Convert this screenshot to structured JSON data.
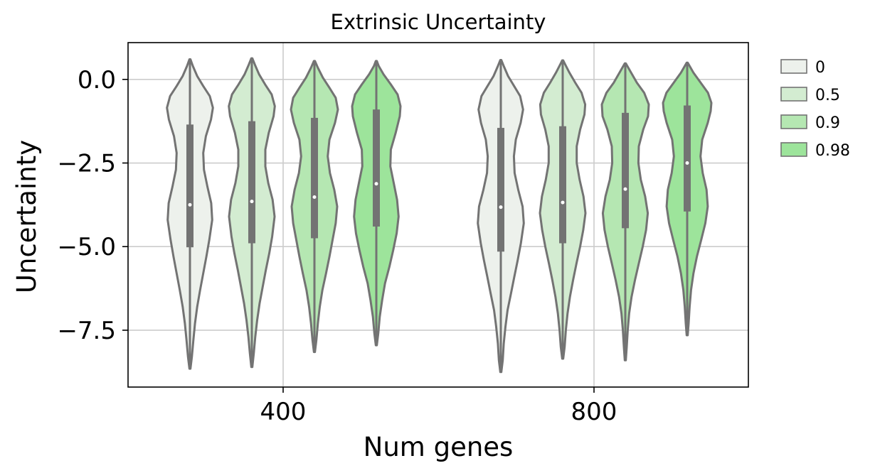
{
  "chart_data": {
    "type": "violin",
    "title": "Extrinsic Uncertainty",
    "xlabel": "Num genes",
    "ylabel": "Uncertainty",
    "categories": [
      "400",
      "800"
    ],
    "ylim": [
      -9.2,
      1.1
    ],
    "yticks": [
      0.0,
      -2.5,
      -5.0,
      -7.5
    ],
    "ytick_labels": [
      "0.0",
      "−2.5",
      "−5.0",
      "−7.5"
    ],
    "grid": true,
    "legend": {
      "placement": "outside-right",
      "title": ""
    },
    "series": [
      {
        "name": "0",
        "color": "#edf1ec",
        "groups": [
          {
            "category": "400",
            "min": -8.65,
            "max": 0.6,
            "q1": -5.02,
            "median": -3.75,
            "q3": -1.35,
            "profile": [
              [
                -8.65,
                0.02
              ],
              [
                -8.3,
                0.08
              ],
              [
                -7.8,
                0.14
              ],
              [
                -7.3,
                0.21
              ],
              [
                -6.8,
                0.3
              ],
              [
                -6.3,
                0.42
              ],
              [
                -5.8,
                0.55
              ],
              [
                -5.3,
                0.68
              ],
              [
                -4.8,
                0.8
              ],
              [
                -4.2,
                0.92
              ],
              [
                -3.7,
                0.88
              ],
              [
                -3.2,
                0.72
              ],
              [
                -2.7,
                0.58
              ],
              [
                -2.2,
                0.55
              ],
              [
                -1.7,
                0.66
              ],
              [
                -1.2,
                0.87
              ],
              [
                -0.85,
                0.95
              ],
              [
                -0.5,
                0.82
              ],
              [
                -0.2,
                0.55
              ],
              [
                0.1,
                0.3
              ],
              [
                0.4,
                0.12
              ],
              [
                0.6,
                0.02
              ]
            ]
          },
          {
            "category": "800",
            "min": -8.75,
            "max": 0.58,
            "q1": -5.15,
            "median": -3.82,
            "q3": -1.45,
            "profile": [
              [
                -8.75,
                0.02
              ],
              [
                -8.4,
                0.08
              ],
              [
                -7.9,
                0.12
              ],
              [
                -7.4,
                0.19
              ],
              [
                -6.9,
                0.28
              ],
              [
                -6.4,
                0.42
              ],
              [
                -5.9,
                0.56
              ],
              [
                -5.4,
                0.7
              ],
              [
                -4.9,
                0.83
              ],
              [
                -4.3,
                0.95
              ],
              [
                -3.8,
                0.9
              ],
              [
                -3.3,
                0.72
              ],
              [
                -2.8,
                0.57
              ],
              [
                -2.3,
                0.54
              ],
              [
                -1.8,
                0.62
              ],
              [
                -1.3,
                0.82
              ],
              [
                -0.9,
                0.92
              ],
              [
                -0.5,
                0.8
              ],
              [
                -0.2,
                0.55
              ],
              [
                0.1,
                0.3
              ],
              [
                0.4,
                0.12
              ],
              [
                0.58,
                0.02
              ]
            ]
          }
        ]
      },
      {
        "name": "0.5",
        "color": "#d3ecd1",
        "groups": [
          {
            "category": "400",
            "min": -8.6,
            "max": 0.63,
            "q1": -4.9,
            "median": -3.65,
            "q3": -1.25,
            "profile": [
              [
                -8.6,
                0.02
              ],
              [
                -8.2,
                0.08
              ],
              [
                -7.7,
                0.14
              ],
              [
                -7.2,
                0.22
              ],
              [
                -6.7,
                0.32
              ],
              [
                -6.2,
                0.45
              ],
              [
                -5.7,
                0.58
              ],
              [
                -5.2,
                0.72
              ],
              [
                -4.7,
                0.84
              ],
              [
                -4.1,
                0.94
              ],
              [
                -3.6,
                0.86
              ],
              [
                -3.1,
                0.68
              ],
              [
                -2.6,
                0.56
              ],
              [
                -2.1,
                0.56
              ],
              [
                -1.6,
                0.7
              ],
              [
                -1.1,
                0.9
              ],
              [
                -0.8,
                0.95
              ],
              [
                -0.45,
                0.82
              ],
              [
                -0.15,
                0.55
              ],
              [
                0.15,
                0.3
              ],
              [
                0.45,
                0.12
              ],
              [
                0.63,
                0.02
              ]
            ]
          },
          {
            "category": "800",
            "min": -8.35,
            "max": 0.57,
            "q1": -4.9,
            "median": -3.68,
            "q3": -1.4,
            "profile": [
              [
                -8.35,
                0.02
              ],
              [
                -8.0,
                0.08
              ],
              [
                -7.5,
                0.13
              ],
              [
                -7.0,
                0.2
              ],
              [
                -6.5,
                0.3
              ],
              [
                -6.0,
                0.43
              ],
              [
                -5.5,
                0.57
              ],
              [
                -5.0,
                0.72
              ],
              [
                -4.5,
                0.85
              ],
              [
                -4.0,
                0.94
              ],
              [
                -3.5,
                0.86
              ],
              [
                -3.0,
                0.7
              ],
              [
                -2.5,
                0.58
              ],
              [
                -2.0,
                0.58
              ],
              [
                -1.5,
                0.72
              ],
              [
                -1.05,
                0.9
              ],
              [
                -0.75,
                0.93
              ],
              [
                -0.4,
                0.78
              ],
              [
                -0.1,
                0.52
              ],
              [
                0.2,
                0.28
              ],
              [
                0.45,
                0.1
              ],
              [
                0.57,
                0.02
              ]
            ]
          }
        ]
      },
      {
        "name": "0.9",
        "color": "#b5e7b2",
        "groups": [
          {
            "category": "400",
            "min": -8.15,
            "max": 0.55,
            "q1": -4.75,
            "median": -3.52,
            "q3": -1.15,
            "profile": [
              [
                -8.15,
                0.02
              ],
              [
                -7.8,
                0.08
              ],
              [
                -7.3,
                0.14
              ],
              [
                -6.8,
                0.22
              ],
              [
                -6.3,
                0.33
              ],
              [
                -5.8,
                0.48
              ],
              [
                -5.3,
                0.62
              ],
              [
                -4.8,
                0.75
              ],
              [
                -4.3,
                0.88
              ],
              [
                -3.8,
                0.94
              ],
              [
                -3.3,
                0.82
              ],
              [
                -2.8,
                0.64
              ],
              [
                -2.3,
                0.55
              ],
              [
                -1.8,
                0.62
              ],
              [
                -1.3,
                0.85
              ],
              [
                -0.9,
                0.97
              ],
              [
                -0.55,
                0.88
              ],
              [
                -0.25,
                0.62
              ],
              [
                0.05,
                0.35
              ],
              [
                0.35,
                0.14
              ],
              [
                0.55,
                0.02
              ]
            ]
          },
          {
            "category": "800",
            "min": -8.4,
            "max": 0.48,
            "q1": -4.45,
            "median": -3.28,
            "q3": -1.0,
            "profile": [
              [
                -8.4,
                0.02
              ],
              [
                -8.0,
                0.06
              ],
              [
                -7.5,
                0.1
              ],
              [
                -7.0,
                0.16
              ],
              [
                -6.5,
                0.26
              ],
              [
                -6.0,
                0.4
              ],
              [
                -5.5,
                0.56
              ],
              [
                -5.0,
                0.72
              ],
              [
                -4.5,
                0.86
              ],
              [
                -4.0,
                0.93
              ],
              [
                -3.5,
                0.82
              ],
              [
                -3.0,
                0.64
              ],
              [
                -2.5,
                0.54
              ],
              [
                -2.0,
                0.56
              ],
              [
                -1.5,
                0.74
              ],
              [
                -1.1,
                0.94
              ],
              [
                -0.75,
                0.97
              ],
              [
                -0.4,
                0.78
              ],
              [
                -0.1,
                0.48
              ],
              [
                0.2,
                0.24
              ],
              [
                0.48,
                0.02
              ]
            ]
          }
        ]
      },
      {
        "name": "0.98",
        "color": "#9de49b",
        "groups": [
          {
            "category": "400",
            "min": -7.95,
            "max": 0.55,
            "q1": -4.4,
            "median": -3.12,
            "q3": -0.9,
            "profile": [
              [
                -7.95,
                0.02
              ],
              [
                -7.6,
                0.08
              ],
              [
                -7.1,
                0.14
              ],
              [
                -6.6,
                0.24
              ],
              [
                -6.1,
                0.36
              ],
              [
                -5.6,
                0.54
              ],
              [
                -5.1,
                0.7
              ],
              [
                -4.6,
                0.84
              ],
              [
                -4.1,
                0.92
              ],
              [
                -3.6,
                0.86
              ],
              [
                -3.1,
                0.72
              ],
              [
                -2.6,
                0.58
              ],
              [
                -2.1,
                0.6
              ],
              [
                -1.6,
                0.8
              ],
              [
                -1.1,
                0.97
              ],
              [
                -0.8,
                1.0
              ],
              [
                -0.45,
                0.88
              ],
              [
                -0.15,
                0.6
              ],
              [
                0.15,
                0.3
              ],
              [
                0.4,
                0.1
              ],
              [
                0.55,
                0.02
              ]
            ]
          },
          {
            "category": "800",
            "min": -7.65,
            "max": 0.5,
            "q1": -3.95,
            "median": -2.5,
            "q3": -0.78,
            "profile": [
              [
                -7.65,
                0.02
              ],
              [
                -7.3,
                0.06
              ],
              [
                -6.8,
                0.1
              ],
              [
                -6.3,
                0.16
              ],
              [
                -5.8,
                0.26
              ],
              [
                -5.3,
                0.4
              ],
              [
                -4.8,
                0.58
              ],
              [
                -4.3,
                0.75
              ],
              [
                -3.8,
                0.85
              ],
              [
                -3.3,
                0.8
              ],
              [
                -2.8,
                0.64
              ],
              [
                -2.3,
                0.55
              ],
              [
                -1.8,
                0.62
              ],
              [
                -1.3,
                0.85
              ],
              [
                -0.95,
                0.97
              ],
              [
                -0.7,
                1.0
              ],
              [
                -0.4,
                0.86
              ],
              [
                -0.1,
                0.56
              ],
              [
                0.2,
                0.26
              ],
              [
                0.5,
                0.02
              ]
            ]
          }
        ]
      }
    ]
  }
}
